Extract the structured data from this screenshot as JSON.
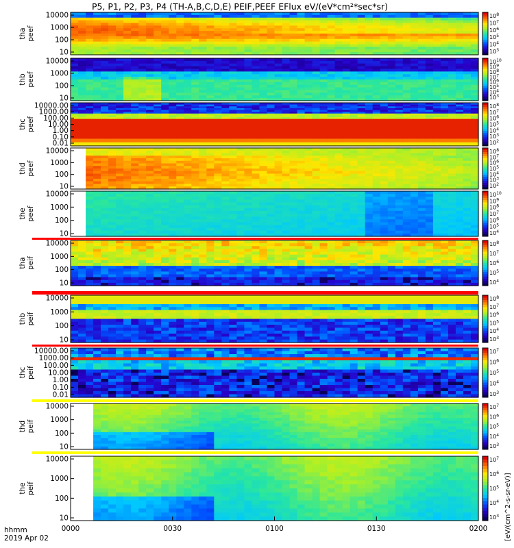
{
  "chart_data": {
    "type": "heatmap",
    "title": "P5, P1, P2, P3, P4 (TH-A,B,C,D,E) PEIF,PEEF EFlux eV/(eV*cm²*sec*sr)",
    "date_label": "2019 Apr 02",
    "time_format_label": "hhmm",
    "x_axis": {
      "ticks": [
        "0000",
        "0030",
        "0100",
        "0130",
        "0200"
      ]
    },
    "colorbar_unit_label": "[eV/(cm^2-s-sr-eV)]",
    "log_y": true,
    "panels": [
      {
        "label": [
          "tha",
          "peef"
        ],
        "yticks": [
          "10000",
          "1000",
          "100",
          "10"
        ],
        "cbar_ticks": [
          "10^8",
          "10^7",
          "10^6",
          "10^5",
          "10^4",
          "10^3"
        ],
        "pattern": "electron-strong"
      },
      {
        "label": [
          "thb",
          "peef"
        ],
        "yticks": [
          "10000",
          "1000",
          "100",
          "10"
        ],
        "cbar_ticks": [
          "10^10",
          "10^9",
          "10^8",
          "10^7",
          "10^6",
          "10^5",
          "10^4",
          "10^3"
        ],
        "pattern": "electron-thb"
      },
      {
        "label": [
          "thc",
          "peef"
        ],
        "yticks": [
          "10000.00",
          "1000.00",
          "100.00",
          "10.00",
          "1.00",
          "0.10",
          "0.01"
        ],
        "cbar_ticks": [
          "10^8",
          "10^7",
          "10^6",
          "10^5",
          "10^4",
          "10^3",
          "10^2"
        ],
        "pattern": "electron-thc"
      },
      {
        "label": [
          "thd",
          "peef"
        ],
        "yticks": [
          "10000",
          "1000",
          "100",
          "10"
        ],
        "cbar_ticks": [
          "10^8",
          "10^7",
          "10^6",
          "10^5",
          "10^4",
          "10^3",
          "10^2"
        ],
        "pattern": "electron-strong-late"
      },
      {
        "label": [
          "the",
          "peef"
        ],
        "yticks": [
          "10000",
          "1000",
          "100",
          "10"
        ],
        "cbar_ticks": [
          "10^10",
          "10^9",
          "10^8",
          "10^7",
          "10^6",
          "10^5",
          "10^4"
        ],
        "pattern": "electron-weak"
      },
      {
        "label": [
          "tha",
          "peif"
        ],
        "yticks": [
          "10000",
          "1000",
          "100",
          "10"
        ],
        "cbar_ticks": [
          "10^8",
          "10^7",
          "10^6",
          "10^5",
          "10^4"
        ],
        "pattern": "ion-a"
      },
      {
        "label": [
          "thb",
          "peif"
        ],
        "yticks": [
          "10000",
          "1000",
          "100",
          "10"
        ],
        "cbar_ticks": [
          "10^8",
          "10^7",
          "10^6",
          "10^5",
          "10^4",
          "10^3"
        ],
        "pattern": "ion-b"
      },
      {
        "label": [
          "thc",
          "peif"
        ],
        "yticks": [
          "10000.00",
          "1000.00",
          "100.00",
          "10.00",
          "1.00",
          "0.10",
          "0.01"
        ],
        "cbar_ticks": [
          "10^7",
          "10^6",
          "10^5",
          "10^4",
          "10^3"
        ],
        "pattern": "ion-c"
      },
      {
        "label": [
          "thd",
          "peif"
        ],
        "yticks": [
          "10000",
          "1000",
          "100",
          "10"
        ],
        "cbar_ticks": [
          "10^7",
          "10^6",
          "10^5",
          "10^4",
          "10^3"
        ],
        "pattern": "ion-soft"
      },
      {
        "label": [
          "the",
          "peif"
        ],
        "yticks": [
          "10000",
          "1000",
          "100",
          "10"
        ],
        "cbar_ticks": [
          "10^7",
          "10^6",
          "10^5",
          "10^4",
          "10^3"
        ],
        "pattern": "ion-soft"
      }
    ]
  }
}
